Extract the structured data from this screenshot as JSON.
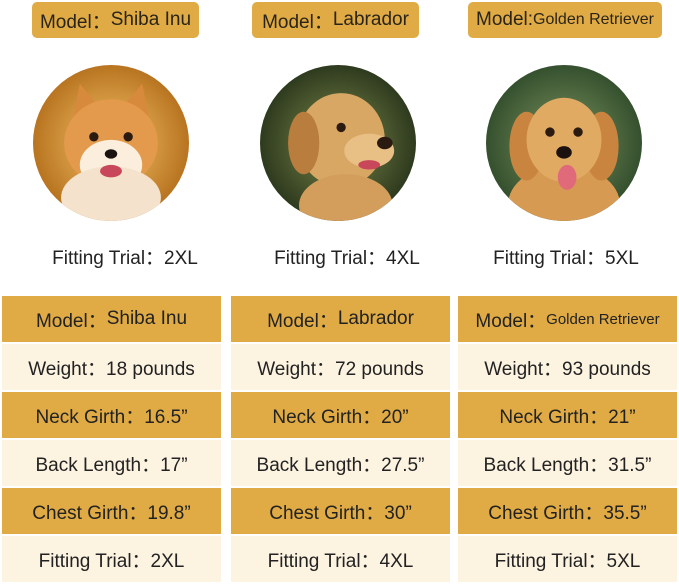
{
  "colors": {
    "gold": "#e0ab45",
    "cream": "#fdf3e1"
  },
  "dogs": [
    {
      "badge_prefix": "Model：",
      "badge_name": "Shiba Inu",
      "photo_icon": "shiba-inu-photo",
      "trial": "Fitting Trial：2XL",
      "table": {
        "model_prefix": "Model：",
        "model_name": "Shiba Inu",
        "weight": "Weight：18 pounds",
        "neck": "Neck Girth：16.5”",
        "back": "Back Length：17”",
        "chest": "Chest Girth：19.8”",
        "fitting": "Fitting Trial：2XL"
      }
    },
    {
      "badge_prefix": "Model：",
      "badge_name": "Labrador",
      "photo_icon": "labrador-photo",
      "trial": "Fitting Trial：4XL",
      "table": {
        "model_prefix": "Model：",
        "model_name": "Labrador",
        "weight": "Weight：72 pounds",
        "neck": "Neck Girth：20”",
        "back": "Back Length：27.5”",
        "chest": "Chest Girth：30”",
        "fitting": "Fitting Trial：4XL"
      }
    },
    {
      "badge_prefix": "Model:",
      "badge_name": "Golden Retriever",
      "photo_icon": "golden-retriever-photo",
      "trial": "Fitting Trial：5XL",
      "table": {
        "model_prefix": "Model：",
        "model_name": "Golden Retriever",
        "weight": "Weight：93 pounds",
        "neck": "Neck Girth：21”",
        "back": "Back Length：31.5”",
        "chest": "Chest Girth：35.5”",
        "fitting": "Fitting Trial：5XL"
      }
    }
  ]
}
